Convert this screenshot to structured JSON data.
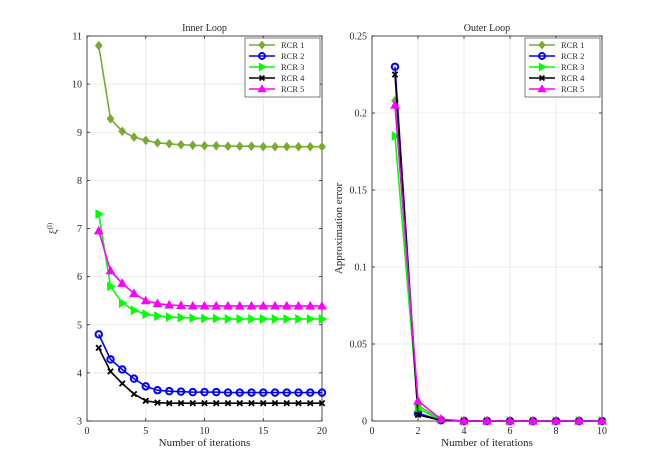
{
  "figure": {
    "background": "#ffffff",
    "axis_color": "#262626",
    "grid_color": "#e6e6e6"
  },
  "chart_data": [
    {
      "type": "line",
      "title": "Inner Loop",
      "xlabel": "Number of iterations",
      "ylabel": "ξ",
      "ylabel_sup": "(l)",
      "xlim": [
        0,
        20
      ],
      "ylim": [
        3,
        11
      ],
      "xticks": [
        0,
        5,
        10,
        15,
        20
      ],
      "yticks": [
        3,
        4,
        5,
        6,
        7,
        8,
        9,
        10,
        11
      ],
      "grid": true,
      "legend_position": "top-right",
      "x": [
        1,
        2,
        3,
        4,
        5,
        6,
        7,
        8,
        9,
        10,
        11,
        12,
        13,
        14,
        15,
        16,
        17,
        18,
        19,
        20
      ],
      "series": [
        {
          "name": "RCR 1",
          "color": "#77ac30",
          "marker": "diamond",
          "values": [
            10.8,
            9.28,
            9.02,
            8.9,
            8.83,
            8.78,
            8.76,
            8.74,
            8.73,
            8.72,
            8.72,
            8.71,
            8.71,
            8.71,
            8.7,
            8.7,
            8.7,
            8.7,
            8.7,
            8.7
          ]
        },
        {
          "name": "RCR 2",
          "color": "#0000ff",
          "marker": "circle",
          "values": [
            4.8,
            4.28,
            4.07,
            3.88,
            3.72,
            3.64,
            3.62,
            3.61,
            3.6,
            3.6,
            3.6,
            3.59,
            3.59,
            3.59,
            3.59,
            3.59,
            3.59,
            3.59,
            3.59,
            3.59
          ]
        },
        {
          "name": "RCR 3",
          "color": "#00ff00",
          "marker": "triangle-right",
          "values": [
            7.3,
            5.8,
            5.45,
            5.3,
            5.22,
            5.18,
            5.16,
            5.15,
            5.14,
            5.13,
            5.13,
            5.12,
            5.12,
            5.12,
            5.12,
            5.12,
            5.12,
            5.12,
            5.12,
            5.12
          ]
        },
        {
          "name": "RCR 4",
          "color": "#000000",
          "marker": "x",
          "values": [
            4.52,
            4.03,
            3.78,
            3.56,
            3.42,
            3.38,
            3.37,
            3.37,
            3.37,
            3.37,
            3.37,
            3.37,
            3.37,
            3.37,
            3.37,
            3.37,
            3.37,
            3.37,
            3.37,
            3.37
          ]
        },
        {
          "name": "RCR 5",
          "color": "#ff00ff",
          "marker": "triangle-up",
          "values": [
            6.95,
            6.12,
            5.86,
            5.65,
            5.5,
            5.44,
            5.41,
            5.4,
            5.39,
            5.39,
            5.39,
            5.39,
            5.39,
            5.39,
            5.39,
            5.39,
            5.39,
            5.39,
            5.39,
            5.39
          ]
        }
      ]
    },
    {
      "type": "line",
      "title": "Outer Loop",
      "xlabel": "Number of iterations",
      "ylabel": "Approximation error",
      "xlim": [
        0,
        10
      ],
      "ylim": [
        0,
        0.25
      ],
      "xticks": [
        0,
        2,
        4,
        6,
        8,
        10
      ],
      "yticks": [
        0,
        0.05,
        0.1,
        0.15,
        0.2,
        0.25
      ],
      "ytick_labels": [
        "0",
        "0.05",
        "0.1",
        "0.15",
        "0.2",
        "0.25"
      ],
      "grid": true,
      "legend_position": "top-right",
      "x": [
        1,
        2,
        3,
        4,
        5,
        6,
        7,
        8,
        9,
        10
      ],
      "series": [
        {
          "name": "RCR 1",
          "color": "#77ac30",
          "marker": "diamond",
          "values": [
            0.208,
            0.01,
            0.001,
            0,
            0,
            0,
            0,
            0,
            0,
            0
          ]
        },
        {
          "name": "RCR 2",
          "color": "#0000ff",
          "marker": "circle",
          "values": [
            0.23,
            0.005,
            0.0005,
            0,
            0,
            0,
            0,
            0,
            0,
            0
          ]
        },
        {
          "name": "RCR 3",
          "color": "#00ff00",
          "marker": "triangle-right",
          "values": [
            0.185,
            0.008,
            0.0008,
            0,
            0,
            0,
            0,
            0,
            0,
            0
          ]
        },
        {
          "name": "RCR 4",
          "color": "#000000",
          "marker": "x",
          "values": [
            0.225,
            0.004,
            0.0004,
            0,
            0,
            0,
            0,
            0,
            0,
            0
          ]
        },
        {
          "name": "RCR 5",
          "color": "#ff00ff",
          "marker": "triangle-up",
          "values": [
            0.205,
            0.013,
            0.0012,
            0,
            0,
            0,
            0,
            0,
            0,
            0
          ]
        }
      ]
    }
  ]
}
